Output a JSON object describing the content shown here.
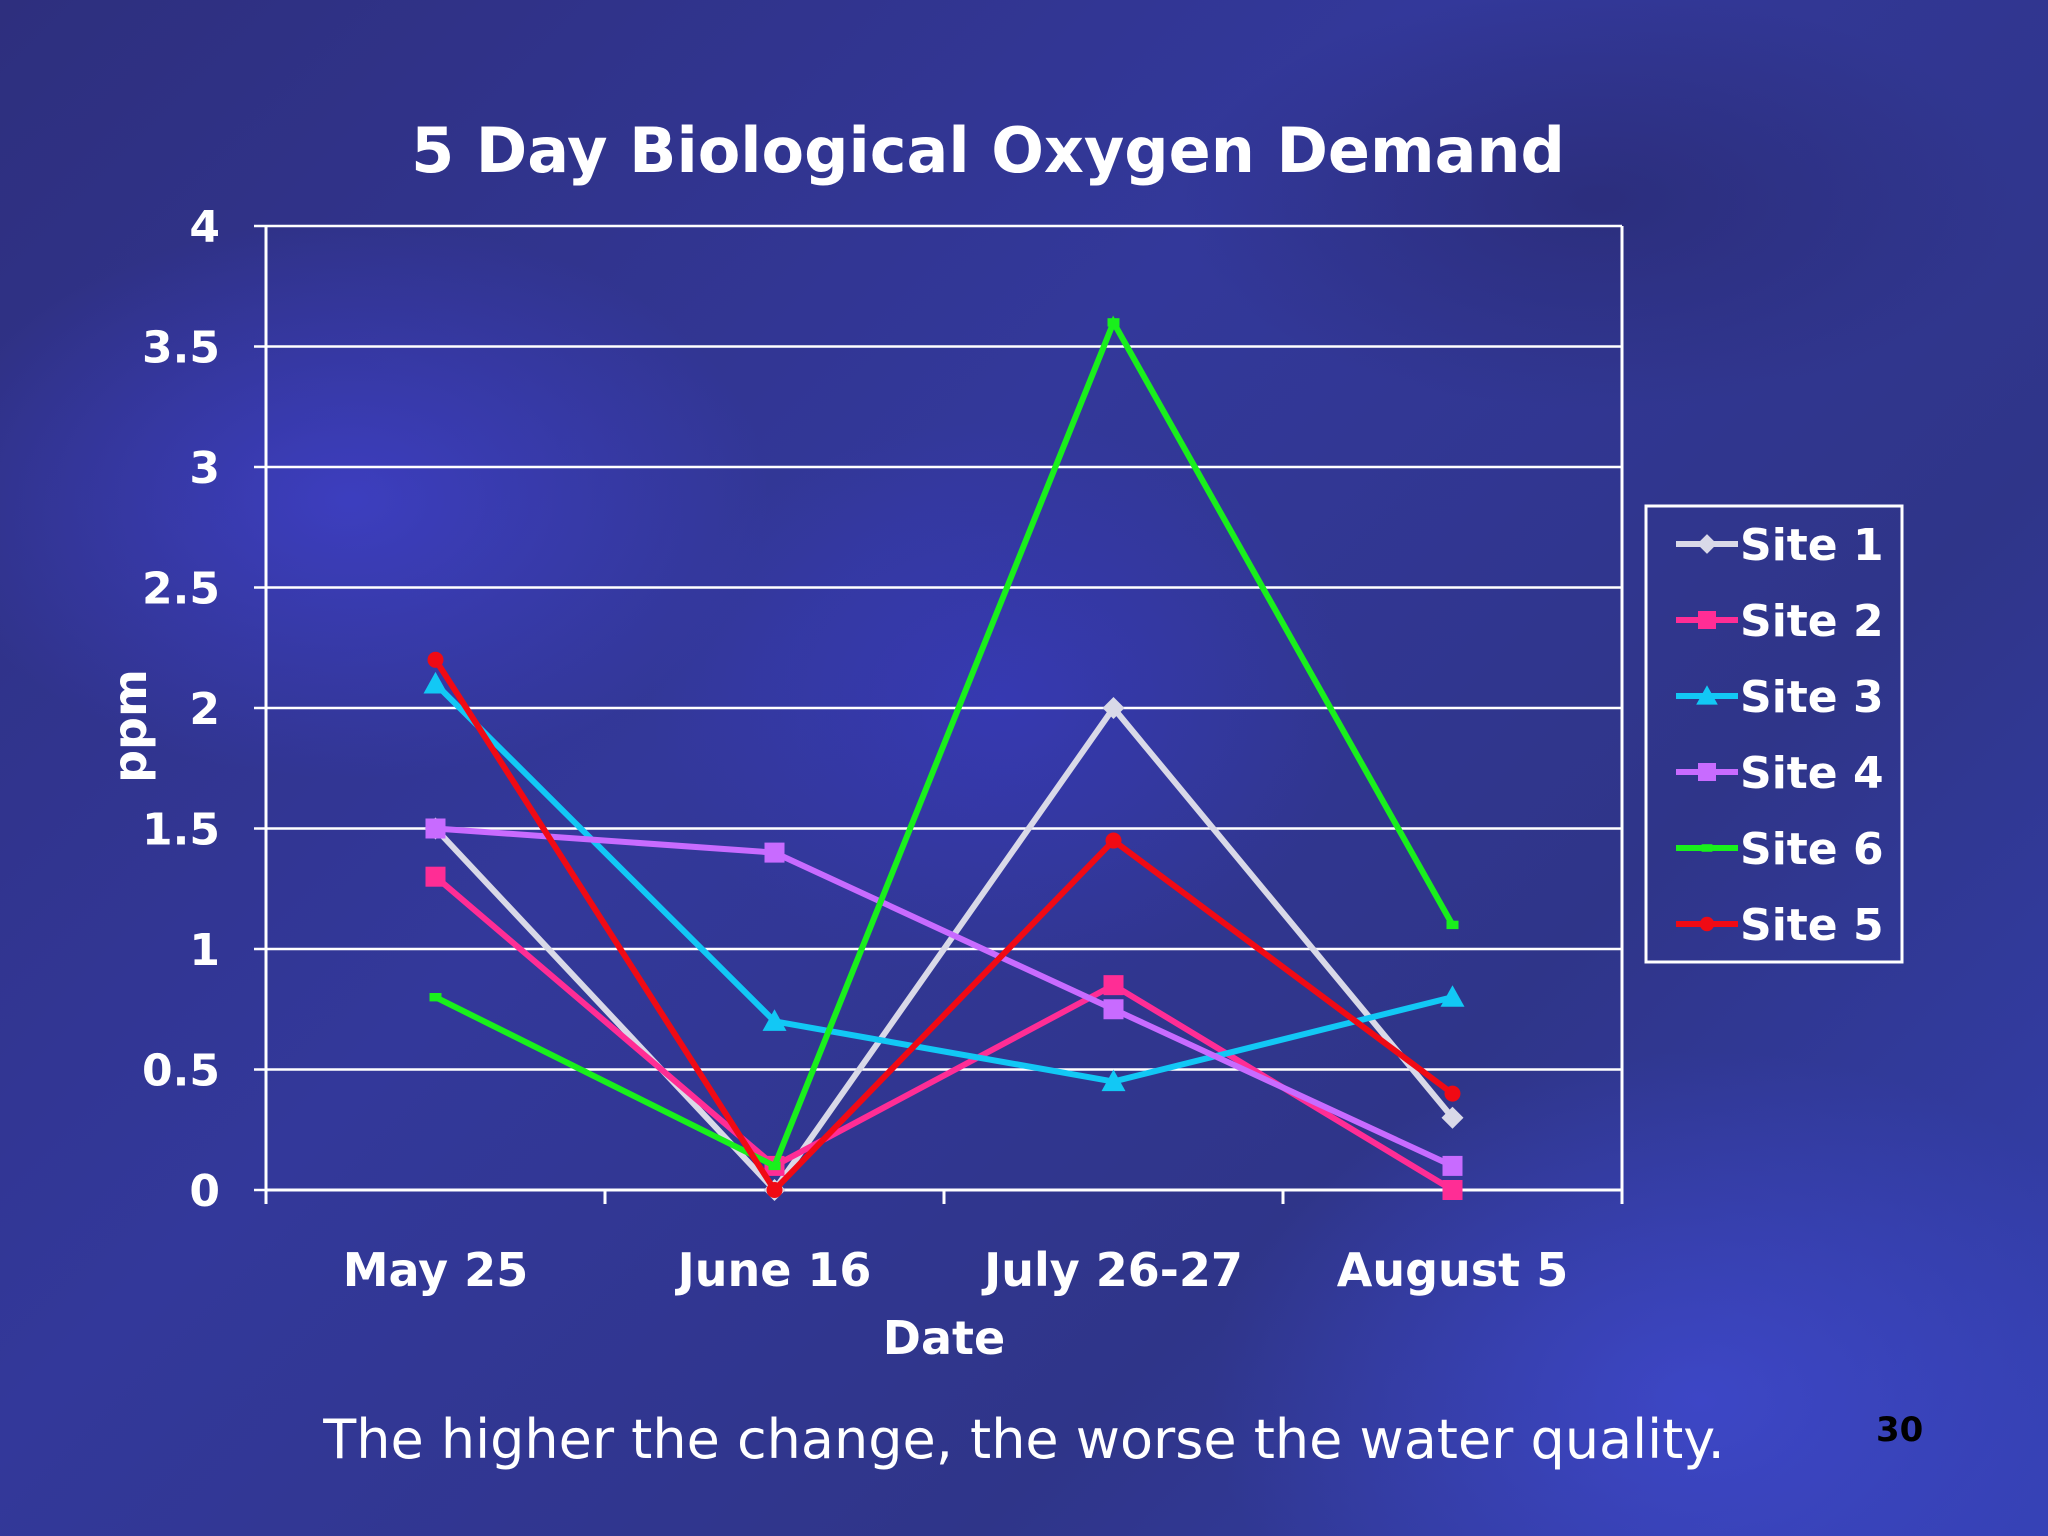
{
  "chart_data": {
    "type": "line",
    "title": "5 Day Biological Oxygen Demand",
    "xlabel": "Date",
    "ylabel": "ppm",
    "categories": [
      "May 25",
      "June 16",
      "July 26-27",
      "August 5"
    ],
    "ylim": [
      0,
      4
    ],
    "yticks": [
      "0",
      "0.5",
      "1",
      "1.5",
      "2",
      "2.5",
      "3",
      "3.5",
      "4"
    ],
    "grid": true,
    "legend_position": "right",
    "series": [
      {
        "name": "Site 1",
        "color": "#d9d9e8",
        "marker": "diamond",
        "values": [
          1.5,
          0.0,
          2.0,
          0.3
        ]
      },
      {
        "name": "Site 2",
        "color": "#ff2d95",
        "marker": "square",
        "values": [
          1.3,
          0.1,
          0.85,
          0.0
        ]
      },
      {
        "name": "Site 3",
        "color": "#12c8f5",
        "marker": "triangle",
        "values": [
          2.1,
          0.7,
          0.45,
          0.8
        ]
      },
      {
        "name": "Site 4",
        "color": "#c86bff",
        "marker": "square",
        "values": [
          1.5,
          1.4,
          0.75,
          0.1
        ]
      },
      {
        "name": "Site 6",
        "color": "#19f01c",
        "marker": "dash",
        "values": [
          0.8,
          0.1,
          3.6,
          1.1
        ]
      },
      {
        "name": "Site 5",
        "color": "#f00a14",
        "marker": "circle",
        "values": [
          2.2,
          0.0,
          1.45,
          0.4
        ]
      }
    ]
  },
  "caption": "The higher the change, the worse the water quality.",
  "slide_number": "30"
}
